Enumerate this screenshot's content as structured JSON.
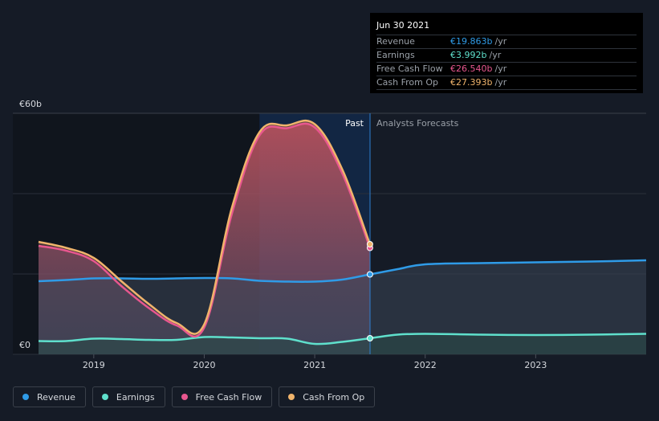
{
  "tooltip": {
    "date": "Jun 30 2021",
    "rows": [
      {
        "label": "Revenue",
        "value": "€19.863b",
        "unit": "/yr",
        "color": "#2f9be7"
      },
      {
        "label": "Earnings",
        "value": "€3.992b",
        "unit": "/yr",
        "color": "#5fe0cc"
      },
      {
        "label": "Free Cash Flow",
        "value": "€26.540b",
        "unit": "/yr",
        "color": "#e8578f"
      },
      {
        "label": "Cash From Op",
        "value": "€27.393b",
        "unit": "/yr",
        "color": "#f0b46c"
      }
    ]
  },
  "legend": [
    {
      "label": "Revenue",
      "color": "#2f9be7"
    },
    {
      "label": "Earnings",
      "color": "#5fe0cc"
    },
    {
      "label": "Free Cash Flow",
      "color": "#e8578f"
    },
    {
      "label": "Cash From Op",
      "color": "#f0b46c"
    }
  ],
  "chart_data": {
    "type": "area",
    "y_top_label": "€60b",
    "y_bottom_label": "€0",
    "ylim": [
      0,
      60
    ],
    "xlim": [
      2018.5,
      2024.0
    ],
    "x_ticks": [
      "2019",
      "2020",
      "2021",
      "2022",
      "2023"
    ],
    "past_label": "Past",
    "forecast_label": "Analysts Forecasts",
    "forecast_start": 2021.5,
    "shaded_start": 2020.5,
    "series": [
      {
        "name": "Revenue",
        "color": "#2f9be7",
        "x": [
          2018.5,
          2018.75,
          2019.0,
          2019.25,
          2019.5,
          2019.75,
          2020.0,
          2020.25,
          2020.5,
          2020.75,
          2021.0,
          2021.25,
          2021.5,
          2021.75,
          2022.0,
          2022.5,
          2023.0,
          2023.5,
          2024.0
        ],
        "y": [
          18.2,
          18.5,
          18.9,
          18.9,
          18.8,
          18.9,
          19.0,
          18.9,
          18.3,
          18.1,
          18.1,
          18.6,
          19.9,
          21.2,
          22.4,
          22.7,
          22.9,
          23.1,
          23.4
        ]
      },
      {
        "name": "Earnings",
        "color": "#5fe0cc",
        "x": [
          2018.5,
          2018.75,
          2019.0,
          2019.25,
          2019.5,
          2019.75,
          2020.0,
          2020.25,
          2020.5,
          2020.75,
          2021.0,
          2021.25,
          2021.5,
          2021.75,
          2022.0,
          2022.5,
          2023.0,
          2023.5,
          2024.0
        ],
        "y": [
          3.3,
          3.3,
          3.9,
          3.8,
          3.6,
          3.6,
          4.3,
          4.2,
          4.0,
          3.9,
          2.6,
          3.1,
          4.0,
          4.9,
          5.1,
          4.9,
          4.8,
          4.9,
          5.1
        ]
      },
      {
        "name": "Free Cash Flow",
        "color": "#e8578f",
        "x": [
          2018.5,
          2018.75,
          2019.0,
          2019.25,
          2019.5,
          2019.75,
          2020.0,
          2020.25,
          2020.5,
          2020.75,
          2021.0,
          2021.25,
          2021.5
        ],
        "y": [
          27.0,
          25.8,
          23.2,
          17.0,
          11.5,
          7.2,
          6.7,
          35.0,
          54.5,
          56.3,
          56.5,
          45.0,
          26.5
        ]
      },
      {
        "name": "Cash From Op",
        "color": "#f0b46c",
        "x": [
          2018.5,
          2018.75,
          2019.0,
          2019.25,
          2019.5,
          2019.75,
          2020.0,
          2020.25,
          2020.5,
          2020.75,
          2021.0,
          2021.25,
          2021.5
        ],
        "y": [
          28.0,
          26.5,
          24.0,
          18.2,
          12.5,
          7.8,
          7.5,
          36.5,
          55.3,
          57.0,
          57.3,
          46.0,
          27.4
        ]
      }
    ]
  }
}
